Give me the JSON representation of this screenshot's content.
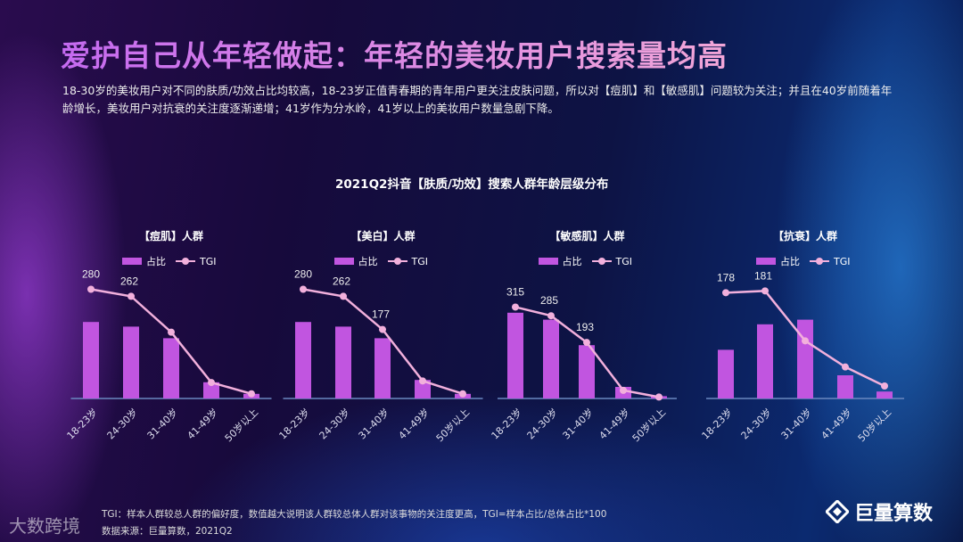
{
  "title": "爱护自己从年轻做起：年轻的美妆用户搜索量均高",
  "description": "18-30岁的美妆用户对不同的肤质/功效占比均较高，18-23岁正值青春期的青年用户更关注皮肤问题，所以对【痘肌】和【敏感肌】问题较为关注；并且在40岁前随着年龄增长，美妆用户对抗衰的关注度逐渐递增；41岁作为分水岭，41岁以上的美妆用户数量急剧下降。",
  "chart_title": "2021Q2抖音【肤质/功效】搜索人群年龄层级分布",
  "legend": {
    "bar": "占比",
    "line": "TGI"
  },
  "colors": {
    "bar": "#c155e0",
    "line": "#f2b0dc"
  },
  "chart_data": [
    {
      "type": "bar+line",
      "title": "【痘肌】人群",
      "categories": [
        "18-23岁",
        "24-30岁",
        "31-40岁",
        "41-49岁",
        "50岁以上"
      ],
      "series": [
        {
          "name": "占比",
          "values": [
            33,
            31,
            26,
            7,
            2
          ]
        },
        {
          "name": "TGI",
          "values": [
            280,
            262,
            170,
            41,
            12
          ],
          "labels": [
            "280",
            "262",
            "",
            "",
            ""
          ]
        }
      ],
      "tgi_axis_max": 320
    },
    {
      "type": "bar+line",
      "title": "【美白】人群",
      "categories": [
        "18-23岁",
        "24-30岁",
        "31-40岁",
        "41-49岁",
        "50岁以上"
      ],
      "series": [
        {
          "name": "占比",
          "values": [
            33,
            31,
            26,
            8,
            2
          ]
        },
        {
          "name": "TGI",
          "values": [
            280,
            262,
            177,
            45,
            12
          ],
          "labels": [
            "280",
            "262",
            "177",
            "",
            ""
          ]
        }
      ],
      "tgi_axis_max": 320
    },
    {
      "type": "bar+line",
      "title": "【敏感肌】人群",
      "categories": [
        "18-23岁",
        "24-30岁",
        "31-40岁",
        "41-49岁",
        "50岁以上"
      ],
      "series": [
        {
          "name": "占比",
          "values": [
            37,
            34,
            23,
            5,
            1
          ]
        },
        {
          "name": "TGI",
          "values": [
            315,
            285,
            193,
            28,
            5
          ],
          "labels": [
            "315",
            "285",
            "193",
            "",
            ""
          ]
        }
      ],
      "tgi_axis_max": 430
    },
    {
      "type": "bar+line",
      "title": "【抗衰】人群",
      "categories": [
        "18-23岁",
        "24-30岁",
        "31-40岁",
        "41-49岁",
        "50岁以上"
      ],
      "series": [
        {
          "name": "占比",
          "values": [
            21,
            32,
            34,
            10,
            3
          ]
        },
        {
          "name": "TGI",
          "values": [
            178,
            181,
            97,
            53,
            21
          ],
          "labels": [
            "178",
            "181",
            "",
            "",
            ""
          ]
        }
      ],
      "tgi_axis_max": 210
    }
  ],
  "footnote": "TGI：样本人群较总人群的偏好度，数值越大说明该人群较总体人群对该事物的关注度更高，TGI=样本占比/总体占比*100",
  "source": "数据来源：巨量算数，2021Q2",
  "brand": "巨量算数",
  "watermark": "大数跨境"
}
